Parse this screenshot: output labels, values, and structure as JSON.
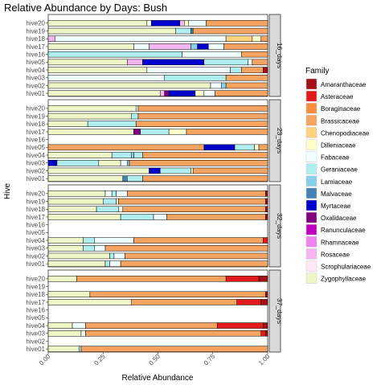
{
  "chart_data": {
    "type": "bar",
    "orientation": "horizontal",
    "stacked": true,
    "title": "Relative Abundance by Days: Bush",
    "xlabel": "Relative Abundance",
    "ylabel": "Hive",
    "xlim": [
      0,
      1
    ],
    "x_ticks": [
      "0.00",
      "0.25",
      "0.50",
      "0.75",
      "1.00"
    ],
    "grid": false,
    "hives": [
      "hive20",
      "hive19",
      "hive18",
      "hive17",
      "hive16",
      "hive05",
      "hive04",
      "hive03",
      "hive02",
      "hive01"
    ],
    "legend": {
      "title": "Family",
      "position": "right",
      "families": [
        {
          "name": "Amaranthaceae",
          "color": "#A50F15"
        },
        {
          "name": "Asteraceae",
          "color": "#E31A1C"
        },
        {
          "name": "Boraginaceae",
          "color": "#FD8D3C"
        },
        {
          "name": "Brassicaceae",
          "color": "#F4A460"
        },
        {
          "name": "Chenopodiaceae",
          "color": "#FFD27F"
        },
        {
          "name": "Dilleniaceae",
          "color": "#FFFFCC"
        },
        {
          "name": "Fabaceae",
          "color": "#F0FFFF"
        },
        {
          "name": "Geraniaceae",
          "color": "#AFEEEE"
        },
        {
          "name": "Lamiaceae",
          "color": "#87CEEB"
        },
        {
          "name": "Malvaceae",
          "color": "#4682B4"
        },
        {
          "name": "Myrtaceae",
          "color": "#0000CD"
        },
        {
          "name": "Oxalidaceae",
          "color": "#800080"
        },
        {
          "name": "Ranunculaceae",
          "color": "#C000C0"
        },
        {
          "name": "Rhamnaceae",
          "color": "#EE82EE"
        },
        {
          "name": "Rosaceae",
          "color": "#F4B6F0"
        },
        {
          "name": "Scrophulariaceae",
          "color": "#FFE8F4"
        },
        {
          "name": "Zygophyllaceae",
          "color": "#EEF5C6"
        }
      ]
    },
    "panels": [
      {
        "strip": "16_days",
        "bars": {
          "hive20": [
            [
              "Zygophyllaceae",
              0.45
            ],
            [
              "Fabaceae",
              0.02
            ],
            [
              "Myrtaceae",
              0.13
            ],
            [
              "Rosaceae",
              0.02
            ],
            [
              "Dilleniaceae",
              0.02
            ],
            [
              "Fabaceae",
              0.08
            ],
            [
              "Brassicaceae",
              0.28
            ]
          ],
          "hive19": [
            [
              "Zygophyllaceae",
              0.58
            ],
            [
              "Geraniaceae",
              0.07
            ],
            [
              "Malvaceae",
              0.01
            ],
            [
              "Brassicaceae",
              0.34
            ]
          ],
          "hive18": [
            [
              "Rosaceae",
              0.03
            ],
            [
              "Fabaceae",
              0.78
            ],
            [
              "Chenopodiaceae",
              0.12
            ],
            [
              "Dilleniaceae",
              0.04
            ],
            [
              "Brassicaceae",
              0.03
            ]
          ],
          "hive17": [
            [
              "Zygophyllaceae",
              0.39
            ],
            [
              "Fabaceae",
              0.07
            ],
            [
              "Rosaceae",
              0.19
            ],
            [
              "Lamiaceae",
              0.03
            ],
            [
              "Myrtaceae",
              0.05
            ],
            [
              "Fabaceae",
              0.07
            ],
            [
              "Brassicaceae",
              0.2
            ]
          ],
          "hive16": [
            [
              "Geraniaceae",
              0.61
            ],
            [
              "Fabaceae",
              0.27
            ],
            [
              "Brassicaceae",
              0.12
            ]
          ],
          "hive05": [
            [
              "Zygophyllaceae",
              0.36
            ],
            [
              "Rosaceae",
              0.07
            ],
            [
              "Myrtaceae",
              0.28
            ],
            [
              "Geraniaceae",
              0.2
            ],
            [
              "Fabaceae",
              0.02
            ],
            [
              "Brassicaceae",
              0.07
            ]
          ],
          "hive04": [
            [
              "Zygophyllaceae",
              0.45
            ],
            [
              "Fabaceae",
              0.38
            ],
            [
              "Geraniaceae",
              0.05
            ],
            [
              "Brassicaceae",
              0.1
            ],
            [
              "Amaranthaceae",
              0.02
            ]
          ],
          "hive03": [
            [
              "Fabaceae",
              0.53
            ],
            [
              "Geraniaceae",
              0.28
            ],
            [
              "Brassicaceae",
              0.19
            ]
          ],
          "hive02": [
            [
              "Zygophyllaceae",
              0.74
            ],
            [
              "Fabaceae",
              0.05
            ],
            [
              "Lamiaceae",
              0.02
            ],
            [
              "Brassicaceae",
              0.19
            ]
          ],
          "hive01": [
            [
              "Zygophyllaceae",
              0.51
            ],
            [
              "Rosaceae",
              0.02
            ],
            [
              "Oxalidaceae",
              0.02
            ],
            [
              "Myrtaceae",
              0.12
            ],
            [
              "Dilleniaceae",
              0.04
            ],
            [
              "Fabaceae",
              0.05
            ],
            [
              "Brassicaceae",
              0.24
            ]
          ]
        }
      },
      {
        "strip": "23_days",
        "bars": {
          "hive20": [
            [
              "Zygophyllaceae",
              0.4
            ],
            [
              "Fabaceae",
              0.01
            ],
            [
              "Brassicaceae",
              0.59
            ]
          ],
          "hive19": [
            [
              "Zygophyllaceae",
              0.38
            ],
            [
              "Geraniaceae",
              0.03
            ],
            [
              "Brassicaceae",
              0.59
            ]
          ],
          "hive18": [
            [
              "Zygophyllaceae",
              0.18
            ],
            [
              "Geraniaceae",
              0.22
            ],
            [
              "Brassicaceae",
              0.6
            ]
          ],
          "hive17": [
            [
              "Zygophyllaceae",
              0.39
            ],
            [
              "Oxalidaceae",
              0.03
            ],
            [
              "Geraniaceae",
              0.13
            ],
            [
              "Dilleniaceae",
              0.08
            ],
            [
              "Brassicaceae",
              0.37
            ]
          ],
          "hive16": [],
          "hive05": [
            [
              "Brassicaceae",
              0.71
            ],
            [
              "Myrtaceae",
              0.14
            ],
            [
              "Geraniaceae",
              0.09
            ],
            [
              "Dilleniaceae",
              0.02
            ],
            [
              "Brassicaceae",
              0.04
            ]
          ],
          "hive04": [
            [
              "Zygophyllaceae",
              0.29
            ],
            [
              "Geraniaceae",
              0.09
            ],
            [
              "Lamiaceae",
              0.01
            ],
            [
              "Geraniaceae",
              0.04
            ],
            [
              "Brassicaceae",
              0.57
            ]
          ],
          "hive03": [
            [
              "Myrtaceae",
              0.04
            ],
            [
              "Geraniaceae",
              0.19
            ],
            [
              "Zygophyllaceae",
              0.1
            ],
            [
              "Fabaceae",
              0.03
            ],
            [
              "Lamiaceae",
              0.01
            ],
            [
              "Brassicaceae",
              0.63
            ]
          ],
          "hive02": [
            [
              "Zygophyllaceae",
              0.46
            ],
            [
              "Myrtaceae",
              0.05
            ],
            [
              "Geraniaceae",
              0.14
            ],
            [
              "Dilleniaceae",
              0.01
            ],
            [
              "Brassicaceae",
              0.34
            ]
          ],
          "hive01": [
            [
              "Zygophyllaceae",
              0.34
            ],
            [
              "Malvaceae",
              0.02
            ],
            [
              "Geraniaceae",
              0.07
            ],
            [
              "Brassicaceae",
              0.57
            ]
          ]
        }
      },
      {
        "strip": "32_days",
        "bars": {
          "hive20": [
            [
              "Zygophyllaceae",
              0.26
            ],
            [
              "Fabaceae",
              0.03
            ],
            [
              "Geraniaceae",
              0.02
            ],
            [
              "Fabaceae",
              0.05
            ],
            [
              "Brassicaceae",
              0.63
            ],
            [
              "Amaranthaceae",
              0.01
            ]
          ],
          "hive19": [
            [
              "Zygophyllaceae",
              0.25
            ],
            [
              "Geraniaceae",
              0.06
            ],
            [
              "Dilleniaceae",
              0.01
            ],
            [
              "Brassicaceae",
              0.67
            ],
            [
              "Amaranthaceae",
              0.01
            ]
          ],
          "hive18": [
            [
              "Zygophyllaceae",
              0.22
            ],
            [
              "Geraniaceae",
              0.1
            ],
            [
              "Fabaceae",
              0.02
            ],
            [
              "Brassicaceae",
              0.65
            ],
            [
              "Amaranthaceae",
              0.01
            ]
          ],
          "hive17": [
            [
              "Zygophyllaceae",
              0.33
            ],
            [
              "Geraniaceae",
              0.15
            ],
            [
              "Fabaceae",
              0.06
            ],
            [
              "Brassicaceae",
              0.45
            ],
            [
              "Amaranthaceae",
              0.01
            ]
          ],
          "hive16": [],
          "hive05": [],
          "hive04": [
            [
              "Zygophyllaceae",
              0.16
            ],
            [
              "Geraniaceae",
              0.05
            ],
            [
              "Fabaceae",
              0.18
            ],
            [
              "Brassicaceae",
              0.59
            ],
            [
              "Asteraceae",
              0.02
            ]
          ],
          "hive03": [
            [
              "Zygophyllaceae",
              0.16
            ],
            [
              "Geraniaceae",
              0.05
            ],
            [
              "Fabaceae",
              0.05
            ],
            [
              "Brassicaceae",
              0.74
            ]
          ],
          "hive02": [
            [
              "Zygophyllaceae",
              0.28
            ],
            [
              "Geraniaceae",
              0.02
            ],
            [
              "Fabaceae",
              0.05
            ],
            [
              "Brassicaceae",
              0.65
            ]
          ],
          "hive01": [
            [
              "Zygophyllaceae",
              0.26
            ],
            [
              "Geraniaceae",
              0.02
            ],
            [
              "Fabaceae",
              0.05
            ],
            [
              "Brassicaceae",
              0.67
            ]
          ]
        }
      },
      {
        "strip": "37_days",
        "bars": {
          "hive20": [
            [
              "Zygophyllaceae",
              0.13
            ],
            [
              "Brassicaceae",
              0.68
            ],
            [
              "Asteraceae",
              0.15
            ],
            [
              "Amaranthaceae",
              0.04
            ]
          ],
          "hive19": [],
          "hive18": [
            [
              "Zygophyllaceae",
              0.19
            ],
            [
              "Brassicaceae",
              0.8
            ],
            [
              "Amaranthaceae",
              0.01
            ]
          ],
          "hive17": [
            [
              "Zygophyllaceae",
              0.38
            ],
            [
              "Brassicaceae",
              0.48
            ],
            [
              "Asteraceae",
              0.11
            ],
            [
              "Amaranthaceae",
              0.03
            ]
          ],
          "hive16": [],
          "hive05": [],
          "hive04": [
            [
              "Zygophyllaceae",
              0.11
            ],
            [
              "Fabaceae",
              0.06
            ],
            [
              "Brassicaceae",
              0.6
            ],
            [
              "Asteraceae",
              0.21
            ],
            [
              "Amaranthaceae",
              0.02
            ]
          ],
          "hive03": [
            [
              "Zygophyllaceae",
              0.15
            ],
            [
              "Fabaceae",
              0.02
            ],
            [
              "Brassicaceae",
              0.8
            ],
            [
              "Asteraceae",
              0.02
            ],
            [
              "Amaranthaceae",
              0.01
            ]
          ],
          "hive02": [],
          "hive01": [
            [
              "Zygophyllaceae",
              0.14
            ],
            [
              "Geraniaceae",
              0.01
            ],
            [
              "Brassicaceae",
              0.85
            ]
          ]
        }
      }
    ]
  }
}
